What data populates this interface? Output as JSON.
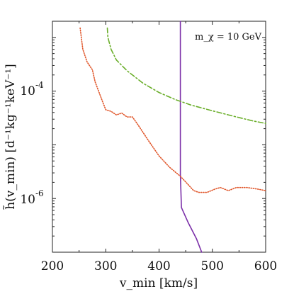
{
  "chart_data": {
    "type": "line",
    "xlabel": "v_min [km/s]",
    "ylabel": "h̃(v_min) [d⁻¹kg⁻¹keV⁻¹]",
    "annotation": "m_χ = 10 GeV",
    "x_ticks": [
      "200",
      "300",
      "400",
      "500",
      "600"
    ],
    "y_ticks": [
      {
        "base": "10",
        "exp": "-4",
        "value": 0.0001
      },
      {
        "base": "10",
        "exp": "-6",
        "value": 1e-06
      }
    ],
    "xlim": [
      200,
      600
    ],
    "ylim": [
      1e-07,
      0.002
    ],
    "y_scale": "log",
    "grid": false,
    "series": [
      {
        "color": "#7b2fa8",
        "style": "solid",
        "points": [
          [
            440,
            0.002
          ],
          [
            440,
            2.8e-06
          ],
          [
            442,
            6.8e-07
          ],
          [
            455,
            3.5e-07
          ],
          [
            470,
            1.8e-07
          ],
          [
            480,
            1e-07
          ]
        ]
      },
      {
        "color": "#6aae2a",
        "style": "dashdot",
        "points": [
          [
            303,
            0.0015
          ],
          [
            304,
            0.001
          ],
          [
            310,
            0.0006
          ],
          [
            320,
            0.00038
          ],
          [
            340,
            0.00024
          ],
          [
            370,
            0.00014
          ],
          [
            400,
            9.4e-05
          ],
          [
            430,
            7e-05
          ],
          [
            460,
            5.5e-05
          ],
          [
            500,
            4.3e-05
          ],
          [
            540,
            3.4e-05
          ],
          [
            575,
            2.8e-05
          ],
          [
            600,
            2.5e-05
          ]
        ]
      },
      {
        "color": "#e0562a",
        "style": "dotted",
        "points": [
          [
            252,
            0.0015
          ],
          [
            257,
            0.0006
          ],
          [
            265,
            0.00035
          ],
          [
            275,
            0.00025
          ],
          [
            280,
            0.00015
          ],
          [
            285,
            0.00011
          ],
          [
            295,
            6e-05
          ],
          [
            300,
            4.5e-05
          ],
          [
            310,
            4.2e-05
          ],
          [
            320,
            3.6e-05
          ],
          [
            330,
            3.9e-05
          ],
          [
            340,
            3.3e-05
          ],
          [
            350,
            3.3e-05
          ],
          [
            360,
            2.4e-05
          ],
          [
            380,
            1.2e-05
          ],
          [
            400,
            6.2e-06
          ],
          [
            420,
            3.8e-06
          ],
          [
            440,
            2.6e-06
          ],
          [
            455,
            1.8e-06
          ],
          [
            465,
            1.4e-06
          ],
          [
            475,
            1.3e-06
          ],
          [
            490,
            1.3e-06
          ],
          [
            505,
            1.5e-06
          ],
          [
            515,
            1.6e-06
          ],
          [
            530,
            1.4e-06
          ],
          [
            545,
            1.6e-06
          ],
          [
            565,
            1.6e-06
          ],
          [
            585,
            1.5e-06
          ],
          [
            600,
            1.4e-06
          ]
        ]
      }
    ]
  }
}
